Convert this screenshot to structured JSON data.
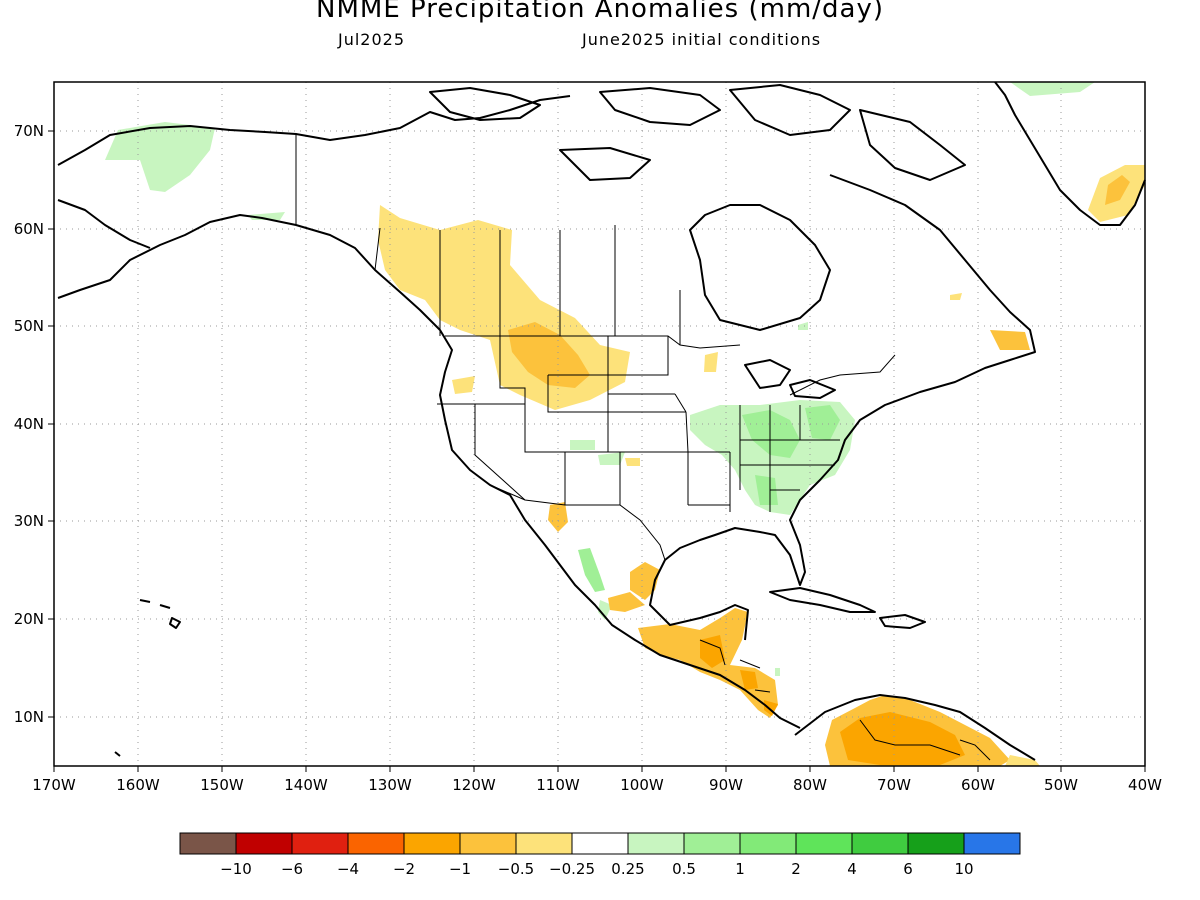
{
  "title": "NMME Precipitation Anomalies (mm/day)",
  "subtitle_left": "Jul2025",
  "subtitle_right": "June2025 initial conditions",
  "map": {
    "region": "North America",
    "lon_range": [
      -170,
      -40
    ],
    "lat_range": [
      5,
      75
    ],
    "lat_ticks": [
      "70N",
      "60N",
      "50N",
      "40N",
      "30N",
      "20N",
      "10N"
    ],
    "lon_ticks": [
      "170W",
      "160W",
      "150W",
      "140W",
      "130W",
      "120W",
      "110W",
      "100W",
      "90W",
      "80W",
      "70W",
      "60W",
      "50W",
      "40W"
    ],
    "anomaly_regions": [
      {
        "area": "Alaska north slope",
        "sign": "wet",
        "category": "0.25 to 0.5"
      },
      {
        "area": "Pacific Northwest / British Columbia",
        "sign": "dry",
        "category": "-0.5 to -0.25"
      },
      {
        "area": "Montana / Wyoming",
        "sign": "dry",
        "category": "-1 to -0.5"
      },
      {
        "area": "Ohio Valley / Mid-Atlantic / Southeast",
        "sign": "wet",
        "category": "0.25 to 1"
      },
      {
        "area": "Southern Mexico / Central America",
        "sign": "dry",
        "category": "-2 to -0.5"
      },
      {
        "area": "Northern South America",
        "sign": "dry",
        "category": "-2 to -1"
      },
      {
        "area": "Southeast Greenland",
        "sign": "dry",
        "category": "-1 to -0.25"
      }
    ]
  },
  "colorbar": {
    "colors": [
      "#7a5548",
      "#c00000",
      "#e02010",
      "#fa6400",
      "#fba500",
      "#fcc23c",
      "#fde27a",
      "#ffffff",
      "#c8f5c0",
      "#a0ef96",
      "#82ea78",
      "#5fe45a",
      "#40cc40",
      "#16a01a",
      "#2876e8"
    ],
    "labels": [
      "−10",
      "−6",
      "−4",
      "−2",
      "−1",
      "−0.5",
      "−0.25",
      "0.25",
      "0.5",
      "1",
      "2",
      "4",
      "6",
      "10"
    ]
  }
}
